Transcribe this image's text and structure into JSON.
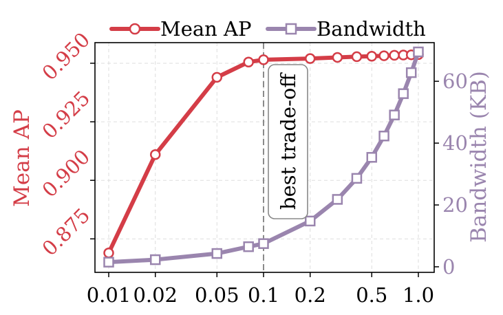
{
  "chart_data": {
    "type": "line",
    "x_scale": "log",
    "x": [
      0.01,
      0.02,
      0.05,
      0.08,
      0.1,
      0.2,
      0.3,
      0.4,
      0.5,
      0.6,
      0.7,
      0.8,
      0.9,
      1.0
    ],
    "x_ticks": [
      0.01,
      0.02,
      0.05,
      0.1,
      0.2,
      0.5,
      1.0
    ],
    "x_tick_labels": [
      "0.01",
      "0.02",
      "0.05",
      "0.1",
      "0.2",
      "0.5",
      "1.0"
    ],
    "series": [
      {
        "name": "Mean AP",
        "axis": "left",
        "color": "#d43d47",
        "marker": "circle",
        "values": [
          0.869,
          0.911,
          0.944,
          0.9505,
          0.9515,
          0.952,
          0.9525,
          0.9528,
          0.953,
          0.9532,
          0.9534,
          0.9535,
          0.9536,
          0.9537
        ]
      },
      {
        "name": "Bandwidth",
        "axis": "right",
        "color": "#9a85ae",
        "marker": "square",
        "values": [
          1.5,
          2.3,
          4.3,
          6.5,
          7.5,
          14.8,
          21.8,
          28.6,
          35.4,
          42.3,
          49.1,
          56.0,
          62.8,
          69.5
        ]
      }
    ],
    "y_left": {
      "label": "Mean AP",
      "ylim": [
        0.8607,
        0.9588
      ],
      "ticks": [
        0.875,
        0.9,
        0.925,
        0.95
      ],
      "tick_labels": [
        "0.875",
        "0.900",
        "0.925",
        "0.950"
      ],
      "color": "#d43d47"
    },
    "y_right": {
      "label": "Bandwidth (KB)",
      "ylim": [
        -1.8,
        72.5
      ],
      "ticks": [
        0,
        20,
        40,
        60
      ],
      "tick_labels": [
        "0",
        "20",
        "40",
        "60"
      ],
      "color": "#9a85ae"
    },
    "annotation": {
      "x": 0.1,
      "text": "best trade-off"
    },
    "grid": true,
    "legend": "top"
  }
}
